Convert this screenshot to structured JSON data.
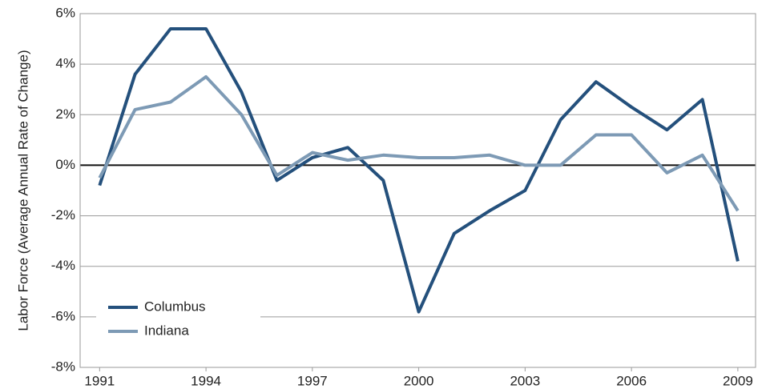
{
  "chart_data": {
    "type": "line",
    "y_label": "Labor Force (Average Annual Rate of Change)",
    "x": [
      1991,
      1992,
      1993,
      1994,
      1995,
      1996,
      1997,
      1998,
      1999,
      2000,
      2001,
      2002,
      2003,
      2004,
      2005,
      2006,
      2007,
      2008,
      2009
    ],
    "series": [
      {
        "name": "Columbus",
        "color": "#24507c",
        "values": [
          -0.8,
          3.6,
          5.4,
          5.4,
          2.9,
          -0.6,
          0.3,
          0.7,
          -0.6,
          -5.8,
          -2.7,
          -1.8,
          -1.0,
          1.8,
          3.3,
          2.3,
          1.4,
          2.6,
          -3.8
        ]
      },
      {
        "name": "Indiana",
        "color": "#7d9ab5",
        "values": [
          -0.5,
          2.2,
          2.5,
          3.5,
          2.0,
          -0.4,
          0.5,
          0.2,
          0.4,
          0.3,
          0.3,
          0.4,
          0.0,
          0.0,
          1.2,
          1.2,
          -0.3,
          0.4,
          -1.8
        ]
      }
    ],
    "xlim": [
      1990.45,
      2009.5
    ],
    "xticks": [
      1991,
      1994,
      1997,
      2000,
      2003,
      2006,
      2009
    ],
    "ylim": [
      -8,
      6
    ],
    "yticks": [
      {
        "value": -8,
        "label": "-8%"
      },
      {
        "value": -6,
        "label": "-6%"
      },
      {
        "value": -4,
        "label": "-4%"
      },
      {
        "value": -2,
        "label": "-2%"
      },
      {
        "value": 0,
        "label": "0%"
      },
      {
        "value": 2,
        "label": "2%"
      },
      {
        "value": 4,
        "label": "4%"
      },
      {
        "value": 6,
        "label": "6%"
      }
    ],
    "grid": true,
    "legend": "lower left"
  }
}
